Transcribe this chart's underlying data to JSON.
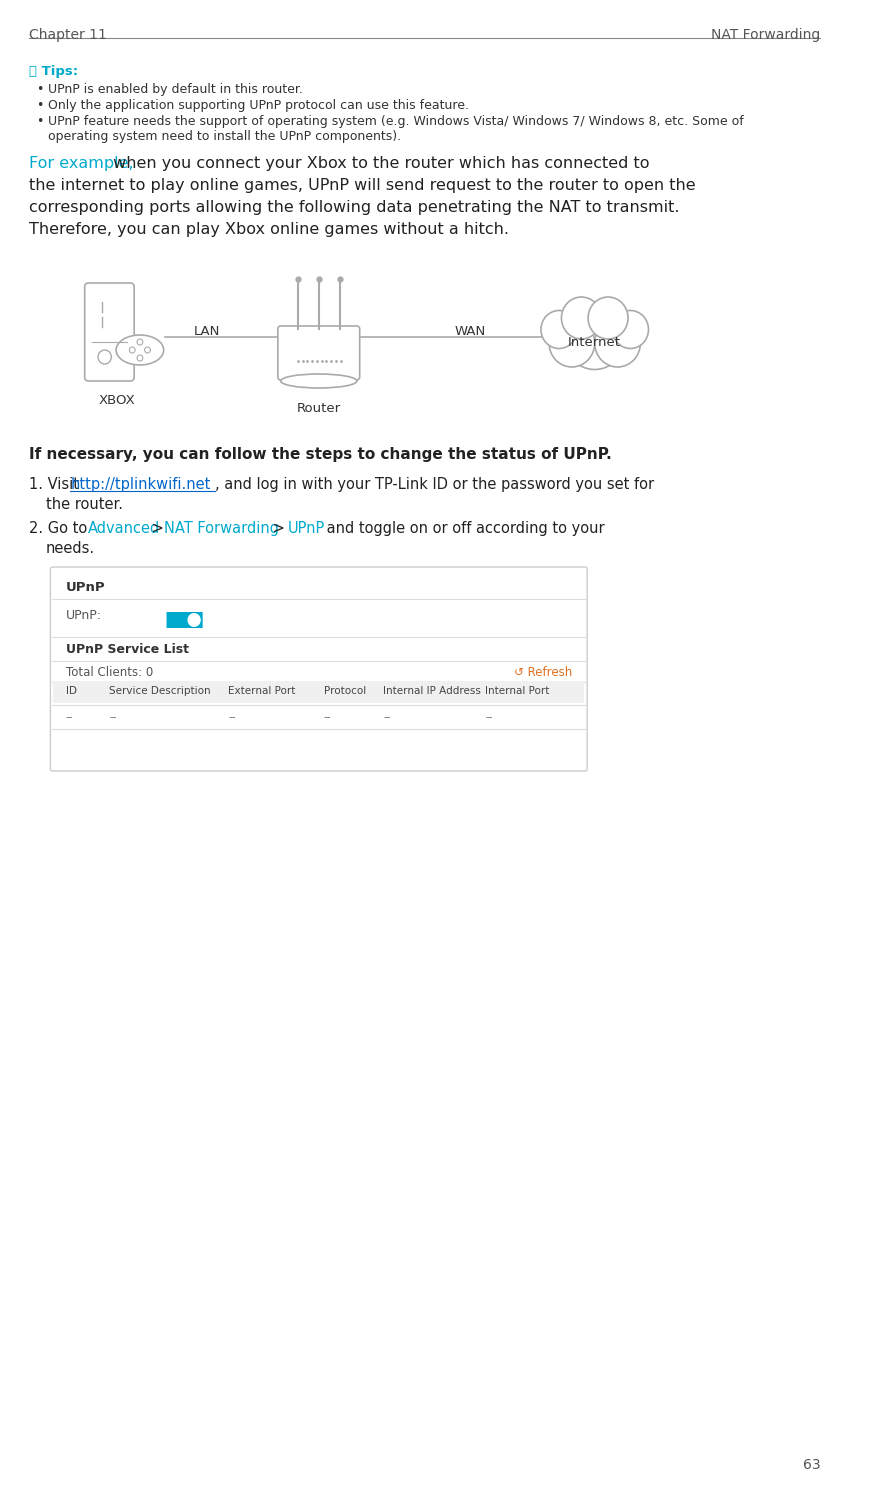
{
  "page_number": "63",
  "header_left": "Chapter 11",
  "header_right": "NAT Forwarding",
  "tips_icon": "ⓘ Tips:",
  "tips_color": "#00aacc",
  "bullet_points": [
    "UPnP is enabled by default in this router.",
    "Only the application supporting UPnP protocol can use this feature.",
    "UPnP feature needs the support of operating system (e.g. Windows Vista/ Windows 7/ Windows 8, etc. Some of\n    operating system need to install the UPnP components)."
  ],
  "example_prefix": "For example,",
  "example_prefix_color": "#00aacc",
  "example_lines": [
    [
      "For example,",
      " when you connect your Xbox to the router which has connected to"
    ],
    [
      "",
      "the internet to play online games, UPnP will send request to the router to open the"
    ],
    [
      "",
      "corresponding ports allowing the following data penetrating the NAT to transmit."
    ],
    [
      "",
      "Therefore, you can play Xbox online games without a hitch."
    ]
  ],
  "diagram_labels": [
    "LAN",
    "WAN",
    "Internet",
    "XBOX",
    "Router"
  ],
  "steps_intro": "If necessary, you can follow the steps to change the status of UPnP.",
  "step1_prefix": "1. Visit ",
  "step1_link": "http://tplinkwifi.net",
  "step1_link_color": "#0066cc",
  "step1_suffix": ", and log in with your TP-Link ID or the password you set for",
  "step1_line2": "    the router.",
  "step2_prefix": "2. Go to  ",
  "step2_advanced": "Advanced",
  "step2_advanced_color": "#00aacc",
  "step2_mid1": " > ",
  "step2_nat": "NAT Forwarding",
  "step2_nat_color": "#00aacc",
  "step2_mid2": " >  ",
  "step2_upnp": "UPnP",
  "step2_upnp_color": "#00aacc",
  "step2_suffix": " and toggle on or off according to your",
  "step2_line2": "    needs.",
  "ui_box_title": "UPnP",
  "ui_upnp_label": "UPnP:",
  "ui_service_list": "UPnP Service List",
  "ui_total_clients": "Total Clients: 0",
  "ui_refresh": "↺ Refresh",
  "ui_refresh_color": "#e07020",
  "ui_columns": [
    "ID",
    "Service Description",
    "External Port",
    "Protocol",
    "Internal IP Address",
    "Internal Port"
  ],
  "ui_row": [
    "--",
    "--",
    "--",
    "--",
    "--",
    "--"
  ],
  "background_color": "#ffffff",
  "text_color": "#333333",
  "header_color": "#555555",
  "line_color": "#cccccc",
  "ui_border_color": "#cccccc",
  "ui_header_bg": "#f5f5f5",
  "toggle_color": "#00aacc",
  "body_fontsize": 9.5,
  "header_fontsize": 10
}
